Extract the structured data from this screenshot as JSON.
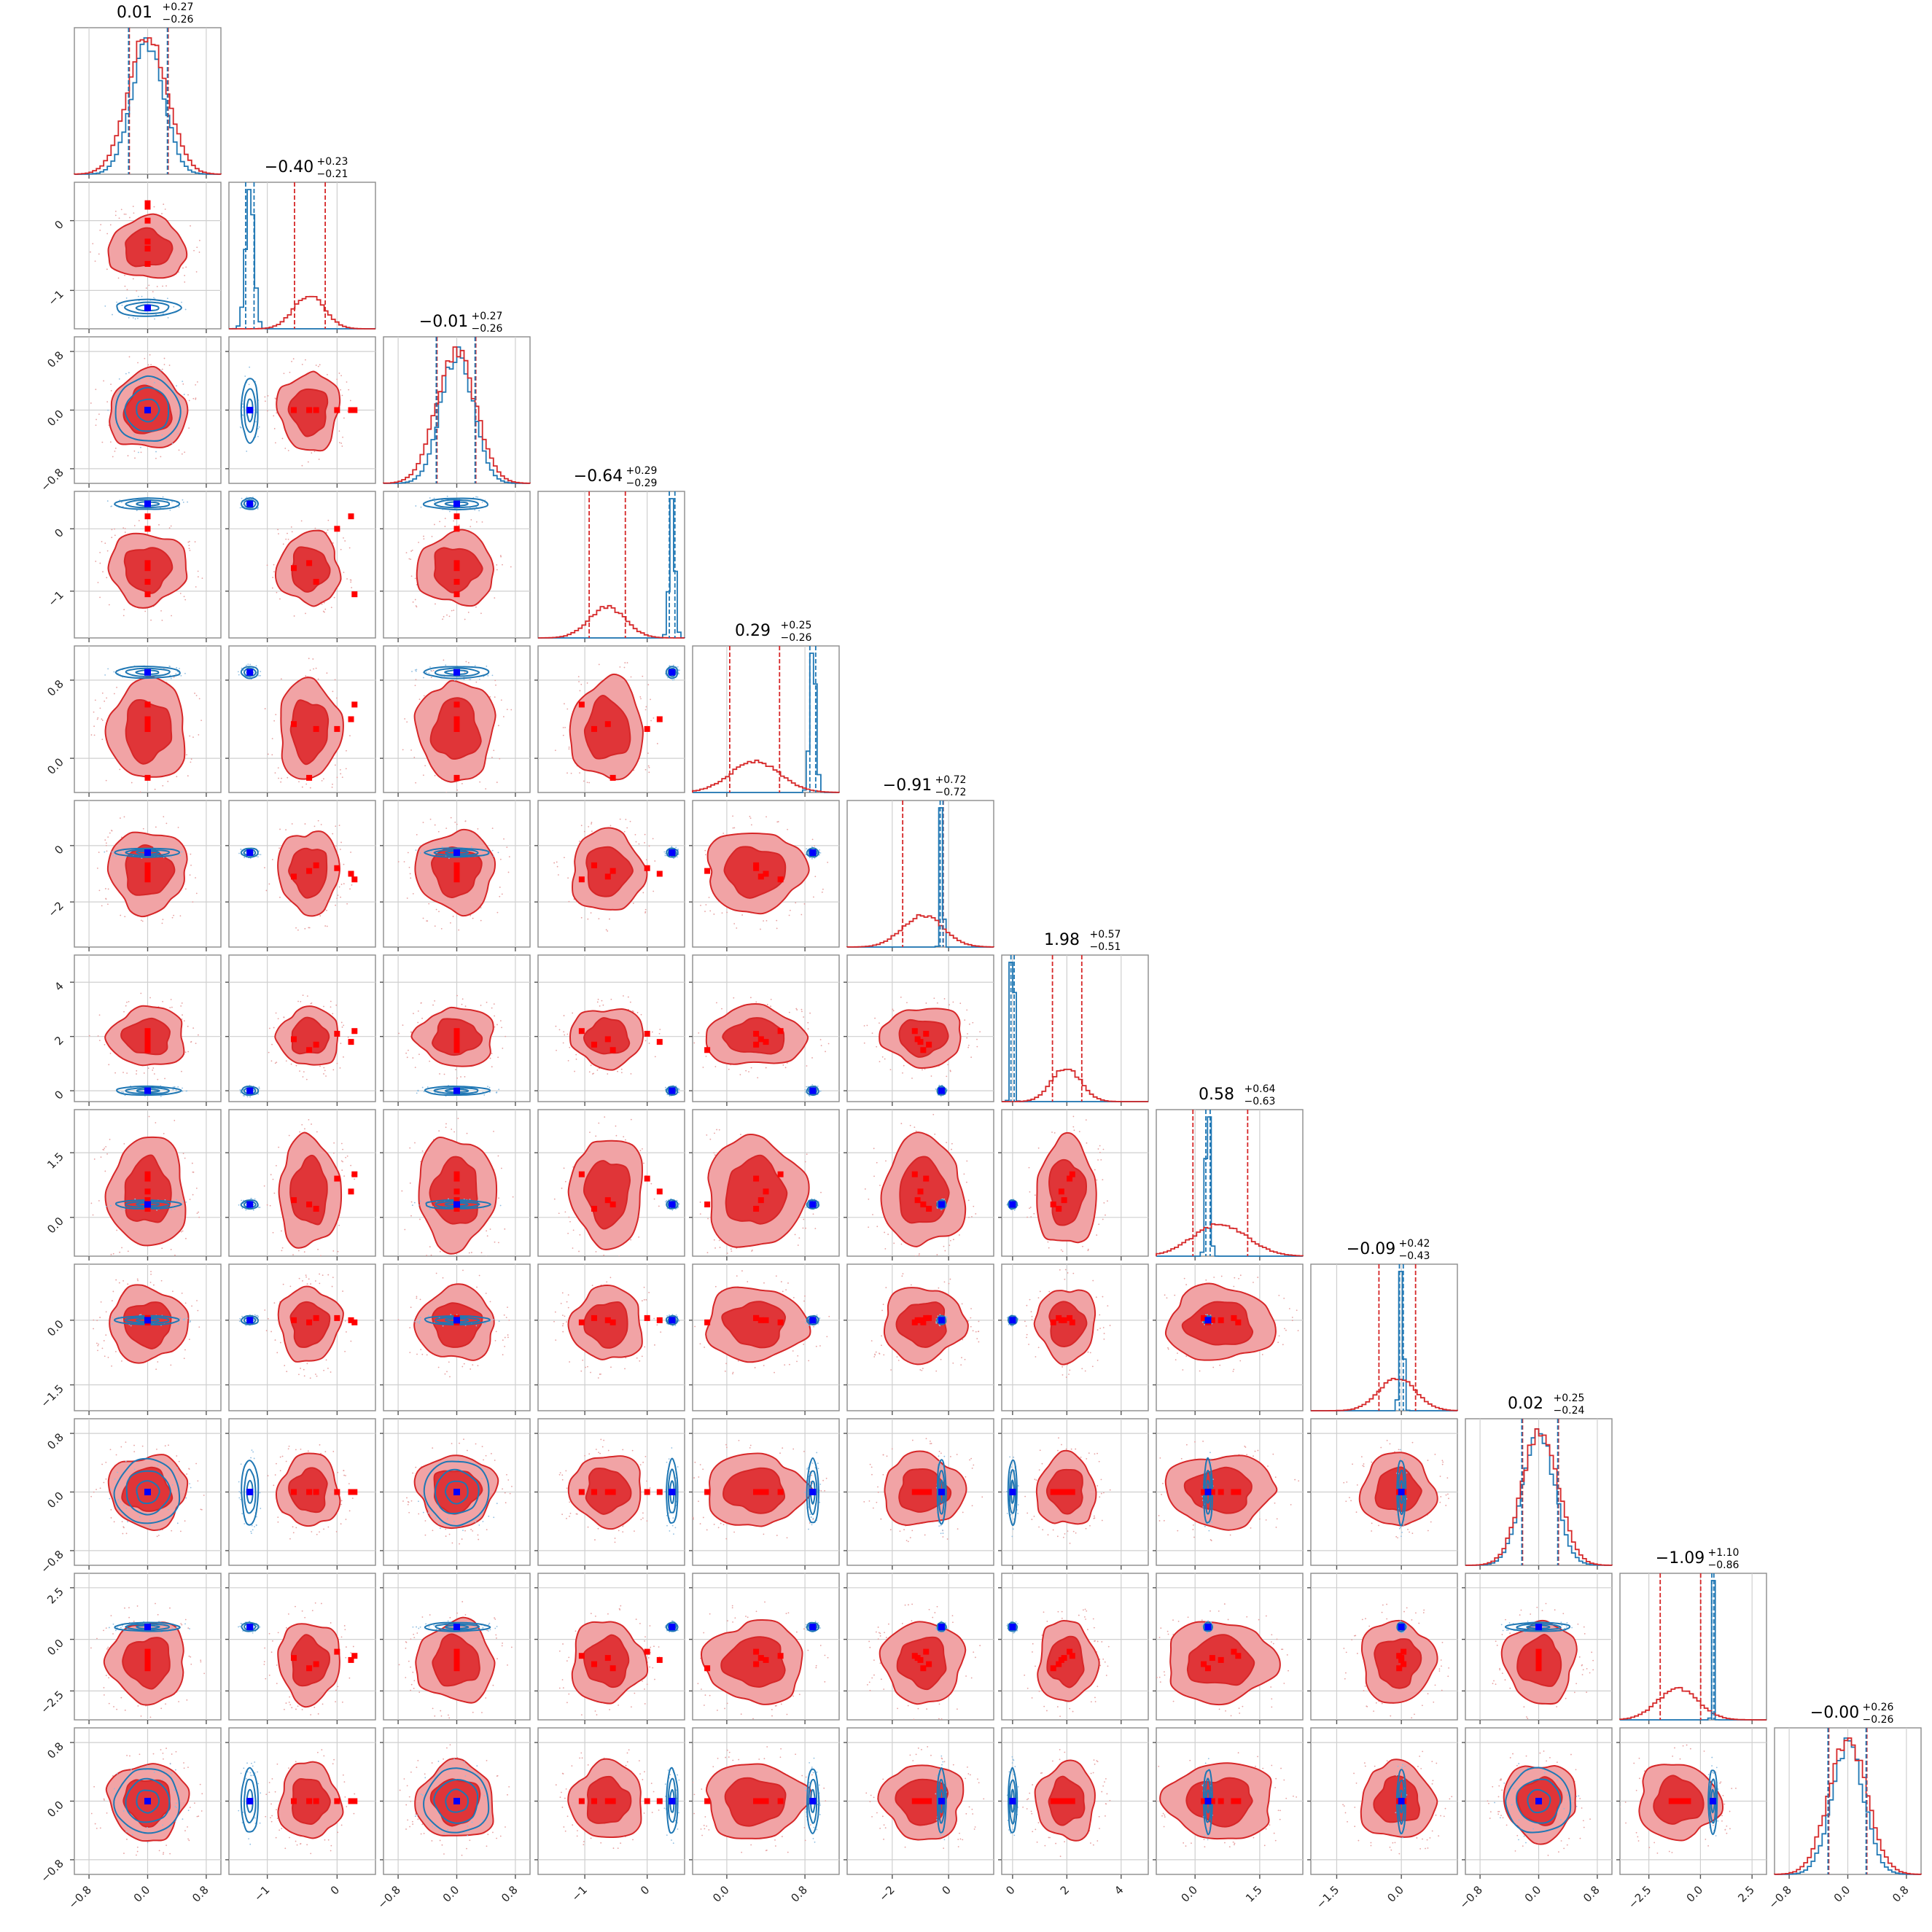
{
  "chart_data": {
    "type": "corner",
    "n_params": 12,
    "colors": {
      "posterior_a": "#d62728",
      "posterior_a_fill": "#f1a3a5",
      "posterior_a_fill_inner": "#e03538",
      "posterior_b": "#1f77b4",
      "truth_a": "#ff0000",
      "truth_b": "#0000ff",
      "grid": "#cfcfcf"
    },
    "titles": [
      {
        "median": "0.01",
        "plus": "+0.27",
        "minus": "−0.26"
      },
      {
        "median": "−0.40",
        "plus": "+0.23",
        "minus": "−0.21"
      },
      {
        "median": "−0.01",
        "plus": "+0.27",
        "minus": "−0.26"
      },
      {
        "median": "−0.64",
        "plus": "+0.29",
        "minus": "−0.29"
      },
      {
        "median": "0.29",
        "plus": "+0.25",
        "minus": "−0.26"
      },
      {
        "median": "−0.91",
        "plus": "+0.72",
        "minus": "−0.72"
      },
      {
        "median": "1.98",
        "plus": "+0.57",
        "minus": "−0.51"
      },
      {
        "median": "0.58",
        "plus": "+0.64",
        "minus": "−0.63"
      },
      {
        "median": "−0.09",
        "plus": "+0.42",
        "minus": "−0.43"
      },
      {
        "median": "0.02",
        "plus": "+0.25",
        "minus": "−0.24"
      },
      {
        "median": "−1.09",
        "plus": "+1.10",
        "minus": "−0.86"
      },
      {
        "median": "−0.00",
        "plus": "+0.26",
        "minus": "−0.26"
      }
    ],
    "params": [
      {
        "range": [
          -1.0,
          1.0
        ],
        "ticks": [
          -0.8,
          0.0,
          0.8
        ],
        "tick_labels": [
          "−0.8",
          "0.0",
          "0.8"
        ],
        "a_mean": 0.0,
        "a_sd": 0.265,
        "b_mean": 0.0,
        "b_sd": 0.22,
        "q": [
          -0.25,
          0.28
        ]
      },
      {
        "range": [
          -1.55,
          0.55
        ],
        "ticks": [
          -1.0,
          0.0
        ],
        "tick_labels": [
          "−1",
          "0"
        ],
        "a_mean": -0.4,
        "a_sd": 0.22,
        "b_mean": -1.25,
        "b_sd": 0.06,
        "q": [
          -0.61,
          -0.17
        ]
      },
      {
        "range": [
          -1.0,
          1.0
        ],
        "ticks": [
          -0.8,
          0.0,
          0.8
        ],
        "tick_labels": [
          "−0.8",
          "0.0",
          "0.8"
        ],
        "a_mean": -0.01,
        "a_sd": 0.265,
        "b_mean": 0.0,
        "b_sd": 0.22,
        "q": [
          -0.27,
          0.26
        ]
      },
      {
        "range": [
          -1.75,
          0.6
        ],
        "ticks": [
          -1.0,
          0.0
        ],
        "tick_labels": [
          "−1",
          "0"
        ],
        "a_mean": -0.64,
        "a_sd": 0.29,
        "b_mean": 0.4,
        "b_sd": 0.045,
        "q": [
          -0.93,
          -0.35
        ]
      },
      {
        "range": [
          -0.35,
          1.15
        ],
        "ticks": [
          0.0,
          0.8
        ],
        "tick_labels": [
          "0.0",
          "0.8"
        ],
        "a_mean": 0.29,
        "a_sd": 0.255,
        "b_mean": 0.88,
        "b_sd": 0.03,
        "q": [
          0.03,
          0.54
        ]
      },
      {
        "range": [
          -3.6,
          1.6
        ],
        "ticks": [
          -2.0,
          0.0
        ],
        "tick_labels": [
          "−2",
          "0"
        ],
        "a_mean": -0.91,
        "a_sd": 0.72,
        "b_mean": -0.25,
        "b_sd": 0.05,
        "q": [
          -1.63,
          -0.19
        ]
      },
      {
        "range": [
          -0.4,
          5.0
        ],
        "ticks": [
          0.0,
          2.0,
          4.0
        ],
        "tick_labels": [
          "0",
          "2",
          "4"
        ],
        "a_mean": 1.98,
        "a_sd": 0.54,
        "b_mean": 0.0,
        "b_sd": 0.06,
        "q": [
          1.47,
          2.55
        ]
      },
      {
        "range": [
          -0.9,
          2.5
        ],
        "ticks": [
          0.0,
          1.5
        ],
        "tick_labels": [
          "0.0",
          "1.5"
        ],
        "a_mean": 0.58,
        "a_sd": 0.63,
        "b_mean": 0.3,
        "b_sd": 0.05,
        "q": [
          -0.05,
          1.22
        ]
      },
      {
        "range": [
          -2.1,
          1.3
        ],
        "ticks": [
          -1.5,
          0.0
        ],
        "tick_labels": [
          "−1.5",
          "0.0"
        ],
        "a_mean": -0.09,
        "a_sd": 0.425,
        "b_mean": 0.0,
        "b_sd": 0.045,
        "q": [
          -0.52,
          0.33
        ]
      },
      {
        "range": [
          -1.0,
          1.0
        ],
        "ticks": [
          -0.8,
          0.0,
          0.8
        ],
        "tick_labels": [
          "−0.8",
          "0.0",
          "0.8"
        ],
        "a_mean": 0.02,
        "a_sd": 0.245,
        "b_mean": 0.0,
        "b_sd": 0.22,
        "q": [
          -0.22,
          0.27
        ]
      },
      {
        "range": [
          -3.9,
          3.2
        ],
        "ticks": [
          -2.5,
          0.0,
          2.5
        ],
        "tick_labels": [
          "−2.5",
          "0.0",
          "2.5"
        ],
        "a_mean": -1.09,
        "a_sd": 0.98,
        "b_mean": 0.6,
        "b_sd": 0.05,
        "q": [
          -1.95,
          0.01
        ]
      },
      {
        "range": [
          -1.0,
          1.0
        ],
        "ticks": [
          -0.8,
          0.0,
          0.8
        ],
        "tick_labels": [
          "−0.8",
          "0.0",
          "0.8"
        ],
        "a_mean": 0.0,
        "a_sd": 0.26,
        "b_mean": 0.0,
        "b_sd": 0.22,
        "q": [
          -0.26,
          0.26
        ]
      }
    ],
    "truth_b": [
      0.0,
      -1.25,
      0.0,
      0.4,
      0.88,
      -0.25,
      0.0,
      0.3,
      0.0,
      0.0,
      0.6,
      0.0
    ],
    "truth_a": [
      [
        0.0,
        0.0,
        0.0,
        0.0,
        0.0,
        0.0
      ],
      [
        0.2,
        -0.4,
        0.0,
        -0.62,
        -0.3,
        0.25
      ],
      [
        0.0,
        0.0,
        0.0,
        0.0,
        0.0,
        0.0
      ],
      [
        0.2,
        -0.55,
        0.0,
        -0.63,
        -0.85,
        -1.05
      ],
      [
        0.4,
        -0.2,
        0.3,
        0.35,
        0.3,
        0.55
      ],
      [
        -1.0,
        -0.9,
        -0.8,
        -1.1,
        -0.7,
        -1.2
      ],
      [
        1.8,
        1.5,
        2.1,
        1.9,
        1.7,
        2.2
      ],
      [
        0.6,
        0.3,
        0.9,
        0.4,
        0.2,
        1.0
      ],
      [
        0.0,
        -0.05,
        0.05,
        0.0,
        0.05,
        -0.05
      ],
      [
        0.0,
        0.0,
        0.0,
        0.0,
        0.0,
        0.0
      ],
      [
        -1.0,
        -1.4,
        -0.6,
        -0.9,
        -1.2,
        -0.8
      ],
      [
        0.0,
        0.0,
        0.0,
        0.0,
        0.0,
        0.0
      ]
    ]
  }
}
